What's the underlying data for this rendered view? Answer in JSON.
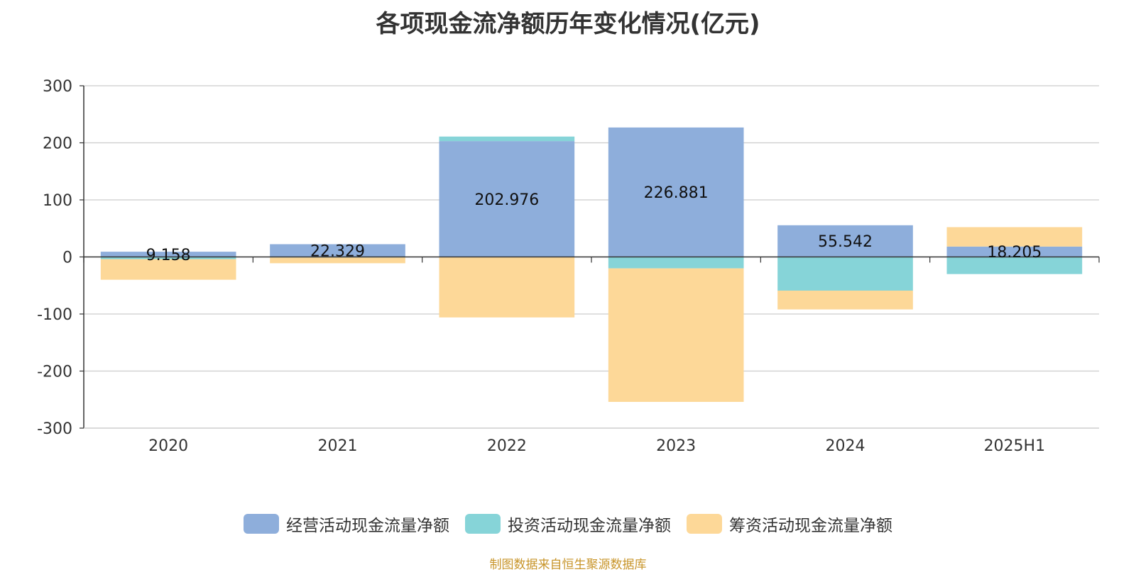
{
  "chart_data": {
    "type": "bar",
    "stacked": true,
    "title": "各项现金流净额历年变化情况(亿元)",
    "categories": [
      "2020",
      "2021",
      "2022",
      "2023",
      "2024",
      "2025H1"
    ],
    "series": [
      {
        "name": "经营活动现金流量净额",
        "color": "#8eaedb",
        "values": [
          9.158,
          22.329,
          202.976,
          226.881,
          55.542,
          18.205
        ],
        "labels": [
          "9.158",
          "22.329",
          "202.976",
          "226.881",
          "55.542",
          "18.205"
        ]
      },
      {
        "name": "投资活动现金流量净额",
        "color": "#86d4d8",
        "values": [
          -4,
          -1,
          8,
          -20,
          -59,
          -30
        ]
      },
      {
        "name": "筹资活动现金流量净额",
        "color": "#fdd898",
        "values": [
          -36,
          -10,
          -106,
          -234,
          -33,
          34
        ]
      }
    ],
    "y_ticks": [
      "300",
      "200",
      "100",
      "0",
      "-100",
      "-200",
      "-300"
    ],
    "ylim": [
      -300,
      300
    ],
    "grid": true,
    "legend_position": "bottom"
  },
  "source_note": "制图数据来自恒生聚源数据库"
}
